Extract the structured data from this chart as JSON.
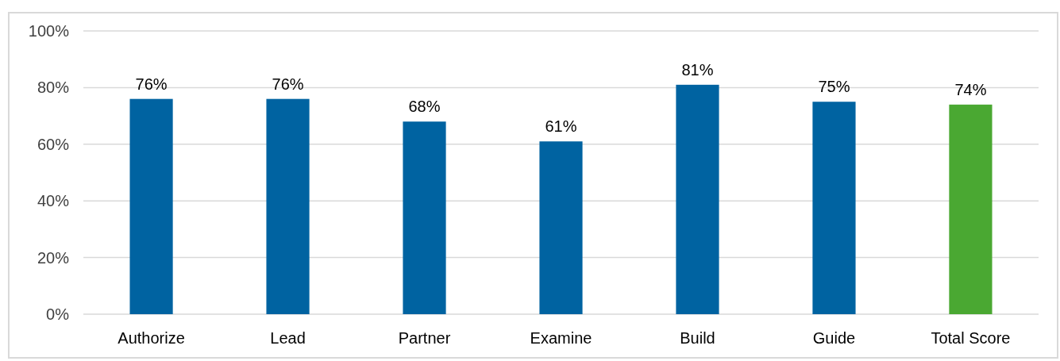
{
  "chart_data": {
    "type": "bar",
    "categories": [
      "Authorize",
      "Lead",
      "Partner",
      "Examine",
      "Build",
      "Guide",
      "Total Score"
    ],
    "values": [
      76,
      76,
      68,
      61,
      81,
      75,
      74
    ],
    "colors": [
      "#0063a1",
      "#0063a1",
      "#0063a1",
      "#0063a1",
      "#0063a1",
      "#0063a1",
      "#4aa832"
    ],
    "value_labels": [
      "76%",
      "76%",
      "68%",
      "61%",
      "81%",
      "75%",
      "74%"
    ],
    "ylim": [
      0,
      100
    ],
    "yticks": [
      {
        "value": 0,
        "label": "0%"
      },
      {
        "value": 20,
        "label": "20%"
      },
      {
        "value": 40,
        "label": "40%"
      },
      {
        "value": 60,
        "label": "60%"
      },
      {
        "value": 80,
        "label": "80%"
      },
      {
        "value": 100,
        "label": "100%"
      }
    ],
    "grid": "y"
  }
}
